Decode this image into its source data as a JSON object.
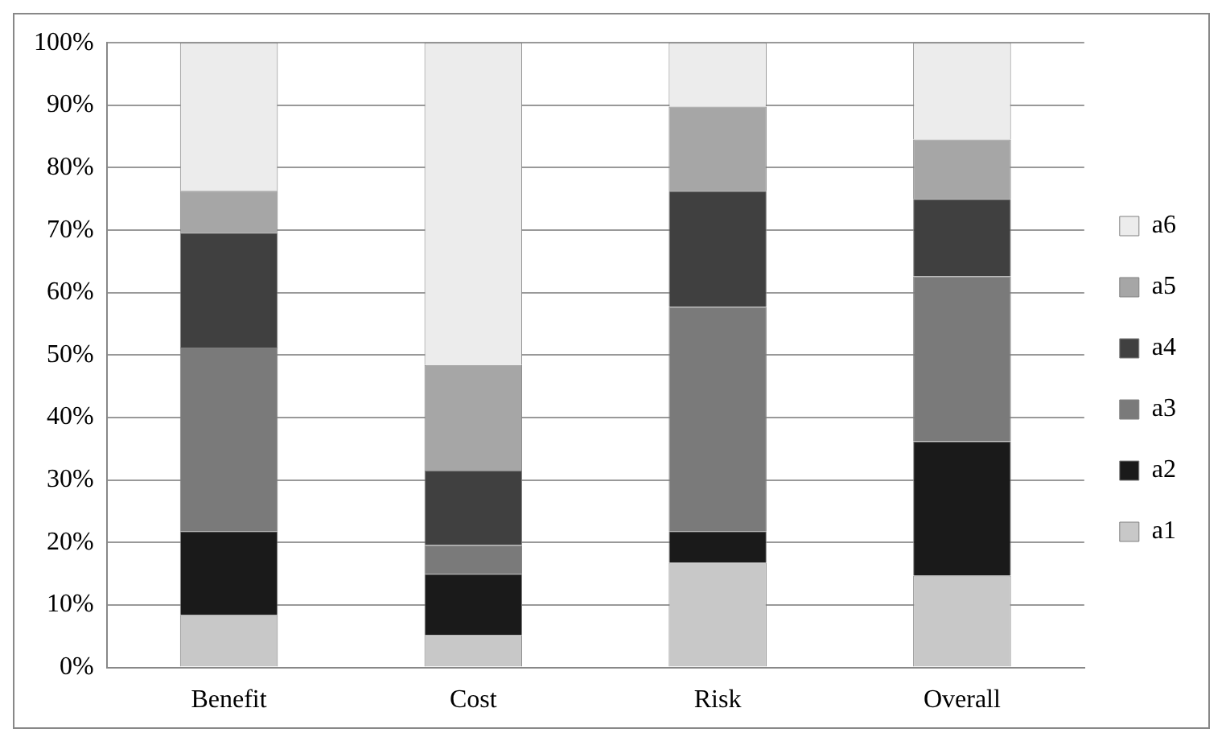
{
  "chart_data": {
    "type": "bar",
    "stacked": true,
    "categories": [
      "Benefit",
      "Cost",
      "Risk",
      "Overall"
    ],
    "series": [
      {
        "name": "a1",
        "color": "#c8c8c8",
        "values": [
          8.4,
          5.2,
          16.8,
          14.7
        ]
      },
      {
        "name": "a2",
        "color": "#1a1a1a",
        "values": [
          13.4,
          9.8,
          5.0,
          21.5
        ]
      },
      {
        "name": "a3",
        "color": "#7a7a7a",
        "values": [
          29.4,
          4.6,
          35.9,
          26.4
        ]
      },
      {
        "name": "a4",
        "color": "#404040",
        "values": [
          18.4,
          11.9,
          18.6,
          12.4
        ]
      },
      {
        "name": "a5",
        "color": "#a6a6a6",
        "values": [
          6.7,
          16.9,
          13.5,
          9.5
        ]
      },
      {
        "name": "a6",
        "color": "#ececec",
        "values": [
          23.7,
          51.6,
          10.2,
          15.5
        ]
      }
    ],
    "ylim": [
      0,
      100
    ],
    "yticks": [
      {
        "value": 0,
        "label": "0%"
      },
      {
        "value": 10,
        "label": "10%"
      },
      {
        "value": 20,
        "label": "20%"
      },
      {
        "value": 30,
        "label": "30%"
      },
      {
        "value": 40,
        "label": "40%"
      },
      {
        "value": 50,
        "label": "50%"
      },
      {
        "value": 60,
        "label": "60%"
      },
      {
        "value": 70,
        "label": "70%"
      },
      {
        "value": 80,
        "label": "80%"
      },
      {
        "value": 90,
        "label": "90%"
      },
      {
        "value": 100,
        "label": "100%"
      }
    ],
    "grid": "y",
    "legend": "right"
  }
}
